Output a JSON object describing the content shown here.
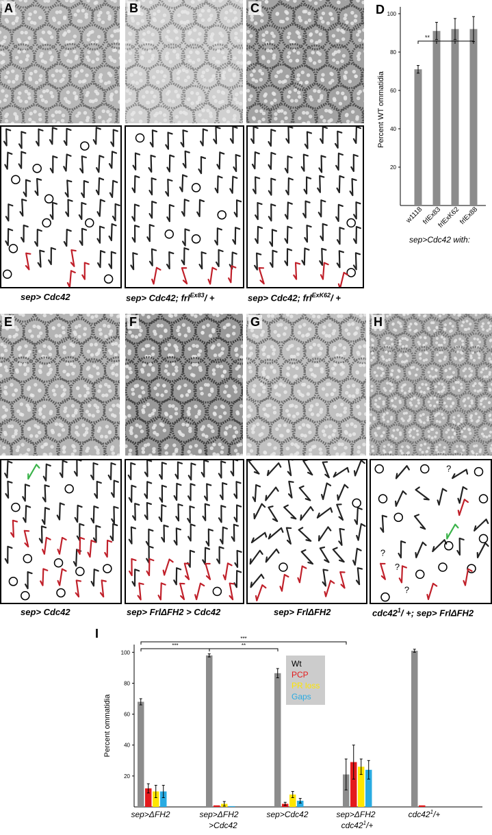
{
  "panels": {
    "A": {
      "label": "A"
    },
    "B": {
      "label": "B"
    },
    "C": {
      "label": "C"
    },
    "D": {
      "label": "D"
    },
    "E": {
      "label": "E"
    },
    "F": {
      "label": "F"
    },
    "G": {
      "label": "G"
    },
    "H": {
      "label": "H"
    },
    "I": {
      "label": "I"
    }
  },
  "captions": {
    "A": {
      "main": "sep> Cdc42",
      "sup": "",
      "tail": ""
    },
    "B": {
      "main": "sep> Cdc42; frl",
      "sup": "Ex83",
      "tail": "/ +"
    },
    "C": {
      "main": "sep> Cdc42; frl",
      "sup": "ExK62",
      "tail": "/ +"
    },
    "E": {
      "main": "sep> Cdc42",
      "sup": "",
      "tail": ""
    },
    "F": {
      "main": "sep> FrlΔFH2 > Cdc42",
      "sup": "",
      "tail": ""
    },
    "G": {
      "main": "sep> FrlΔFH2",
      "sup": "",
      "tail": ""
    },
    "H": {
      "main": "cdc42",
      "sup": "1",
      "tail": "/ +; sep> FrlΔFH2"
    }
  },
  "colors": {
    "bar": "#8c8c8c",
    "wt": "#000000",
    "pcp": "#e41a1c",
    "pr_loss": "#ffe600",
    "gaps": "#29abe2",
    "legend_bg": "#cccccc",
    "red_arrow": "#c0202a",
    "green_arrow": "#3bb34a"
  },
  "legend": {
    "wt": "Wt",
    "pcp": "PCP",
    "pr_loss": "PR loss",
    "gaps": "Gaps"
  },
  "chart_data": [
    {
      "panel": "D",
      "type": "bar",
      "categories": [
        "w1118",
        "frlEx83",
        "frlExK62",
        "frlEx88"
      ],
      "values": [
        71,
        91,
        92,
        92
      ],
      "errors": [
        2,
        4.5,
        5.5,
        6.5
      ],
      "ylabel": "Percent WT ommatidia",
      "xlabel": "sep>Cdc42 with:",
      "ylim": [
        0,
        100
      ],
      "yticks": [
        20,
        40,
        60,
        80,
        100
      ],
      "significance": [
        {
          "label": "**"
        }
      ]
    },
    {
      "panel": "I",
      "type": "bar",
      "categories": [
        {
          "line1": "sep>ΔFH2",
          "line2": "",
          "sup": ""
        },
        {
          "line1": "sep>ΔFH2",
          "line2": ">Cdc42",
          "sup": ""
        },
        {
          "line1": "sep>Cdc42",
          "line2": "",
          "sup": ""
        },
        {
          "line1": "sep>ΔFH2",
          "line2": "cdc42",
          "sup": "1",
          "tail": "/+"
        },
        {
          "line1": "cdc42",
          "line2": "",
          "sup": "1",
          "tail": "/+"
        }
      ],
      "series": [
        {
          "name": "Wt",
          "values": [
            68,
            98,
            86.5,
            21,
            101
          ],
          "errors": [
            2,
            1,
            3,
            10,
            1
          ]
        },
        {
          "name": "PCP",
          "values": [
            12,
            1,
            2,
            29,
            1
          ],
          "errors": [
            3,
            0,
            1,
            11,
            0
          ]
        },
        {
          "name": "PR loss",
          "values": [
            10,
            2,
            8,
            26,
            0
          ],
          "errors": [
            4,
            1.5,
            2,
            5,
            0
          ]
        },
        {
          "name": "Gaps",
          "values": [
            10,
            0.5,
            4,
            24,
            0
          ],
          "errors": [
            4,
            0,
            1.5,
            6,
            0
          ]
        }
      ],
      "ylabel": "Percent ommatidia",
      "ylim": [
        0,
        105
      ],
      "yticks": [
        20,
        40,
        60,
        80,
        100
      ],
      "significance": [
        {
          "label": "***"
        },
        {
          "label": "**"
        },
        {
          "label": "***"
        }
      ]
    }
  ],
  "schematics": {
    "A": {
      "q": []
    },
    "B": {
      "q": []
    },
    "C": {
      "q": []
    },
    "E": {
      "q": []
    },
    "F": {
      "q": []
    },
    "G": {
      "q": []
    },
    "H": {
      "q": [
        "?",
        "?",
        "?",
        "?"
      ]
    }
  }
}
